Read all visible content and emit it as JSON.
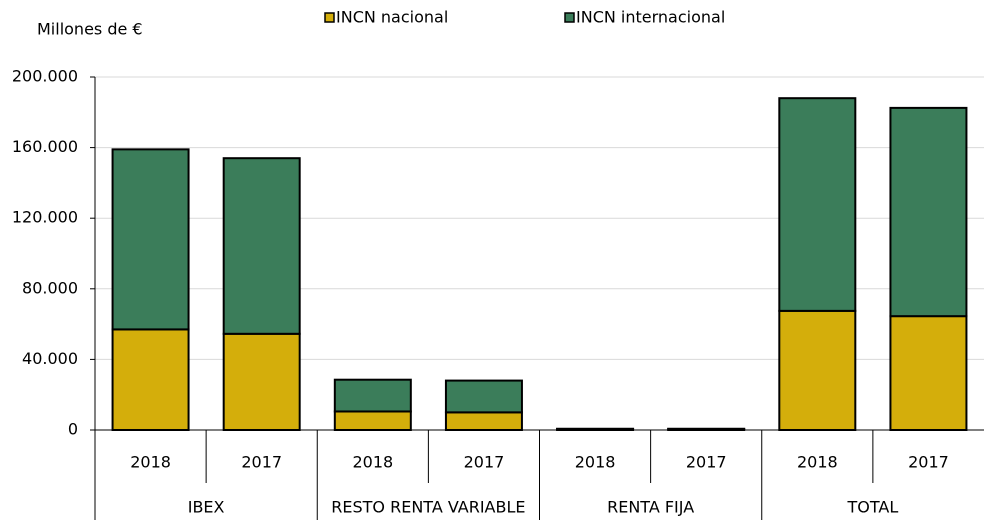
{
  "chart_data": {
    "type": "stacked-bar",
    "ylabel": "Millones de €",
    "categories": [
      "2018",
      "2017",
      "2018",
      "2017",
      "2018",
      "2017",
      "2018",
      "2017"
    ],
    "groups": [
      "IBEX",
      "RESTO RENTA VARIABLE",
      "RENTA FIJA",
      "TOTAL"
    ],
    "series": [
      {
        "name": "INCN nacional",
        "color": "#d4ae0b",
        "values": [
          57000,
          54500,
          10500,
          10000,
          400,
          400,
          67500,
          64500
        ]
      },
      {
        "name": "INCN internacional",
        "color": "#3b7d5a",
        "values": [
          102000,
          99500,
          18000,
          18000,
          300,
          300,
          120500,
          118000
        ]
      }
    ],
    "ylim": [
      0,
      200000
    ],
    "yticks": [
      0,
      {
        "value": 40000,
        "label": "40.000"
      },
      {
        "value": 80000,
        "label": "80.000"
      },
      {
        "value": 120000,
        "label": "120.000"
      },
      {
        "value": 160000,
        "label": "160.000"
      },
      {
        "value": 200000,
        "label": "200.000"
      }
    ],
    "grid": true,
    "legend": "top"
  }
}
